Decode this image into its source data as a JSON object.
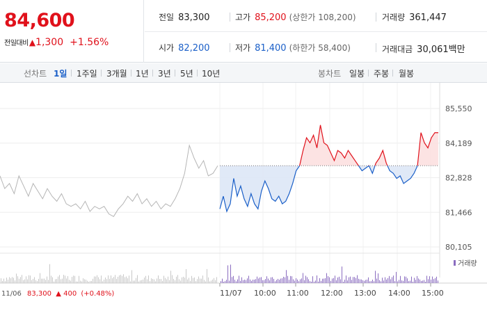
{
  "quote": {
    "price": "84,600",
    "change_label": "전일대비",
    "change_icon": "triangle-up-icon",
    "change_value": "1,300",
    "change_pct": "+1.56%"
  },
  "stats": {
    "prev_close": {
      "label": "전일",
      "value": "83,300"
    },
    "high": {
      "label": "고가",
      "value": "85,200",
      "sub": "(상한가 108,200)"
    },
    "volume": {
      "label": "거래량",
      "value": "361,447"
    },
    "open": {
      "label": "시가",
      "value": "82,200"
    },
    "low": {
      "label": "저가",
      "value": "81,400",
      "sub": "(하한가 58,400)"
    },
    "amount": {
      "label": "거래대금",
      "value": "30,061",
      "unit": "백만"
    }
  },
  "tabs": {
    "line_chart_label": "선차트",
    "periods": [
      "1일",
      "1주일",
      "3개월",
      "1년",
      "3년",
      "5년",
      "10년"
    ],
    "active_period": "1일",
    "candle_chart_label": "봉차트",
    "candles": [
      "일봉",
      "주봉",
      "월봉"
    ]
  },
  "colors": {
    "up": "#e0111b",
    "down": "#1a5fc8",
    "prev_day": "#b5b5b5",
    "volume": "#8a6cc0"
  },
  "chart_data": {
    "type": "line",
    "y_ticks": [
      "85,550",
      "84,189",
      "82,828",
      "81,466",
      "80,105"
    ],
    "ylim": [
      80105,
      85550
    ],
    "base_price": 83300,
    "x_tick_labels": [
      "11/06",
      "11/07",
      "10:00",
      "11:00",
      "12:00",
      "13:00",
      "14:00",
      "15:00"
    ],
    "prev_day": {
      "date": "11/06",
      "close": "83,300",
      "change_icon": "triangle-up-icon",
      "change": "400",
      "change_pct": "(+0.48%)",
      "values": [
        82900,
        82400,
        82600,
        82200,
        82900,
        82500,
        82100,
        82600,
        82300,
        82000,
        82400,
        82100,
        81900,
        82200,
        81800,
        81700,
        81800,
        81600,
        81900,
        81500,
        81700,
        81600,
        81700,
        81400,
        81300,
        81600,
        81800,
        82100,
        81900,
        82200,
        81800,
        82000,
        81700,
        81900,
        81600,
        81800,
        81700,
        82000,
        82400,
        83000,
        84100,
        83600,
        83200,
        83500,
        82900,
        83000,
        83300
      ]
    },
    "today": {
      "values": [
        81600,
        82100,
        81500,
        81800,
        82800,
        82100,
        82500,
        82000,
        81700,
        82200,
        81800,
        81600,
        82300,
        82700,
        82400,
        82000,
        81900,
        82100,
        81800,
        81900,
        82200,
        82600,
        83100,
        83300,
        83900,
        84400,
        84200,
        84500,
        84000,
        84900,
        84200,
        84100,
        83800,
        83500,
        83900,
        83800,
        83600,
        83900,
        83700,
        83500,
        83300,
        83100,
        83200,
        83300,
        83000,
        83400,
        83600,
        83900,
        83400,
        83100,
        83000,
        82800,
        82900,
        82600,
        82700,
        82800,
        83000,
        83300,
        84600,
        84200,
        84000,
        84400,
        84600,
        84600
      ]
    },
    "volume_legend": "거래량"
  }
}
